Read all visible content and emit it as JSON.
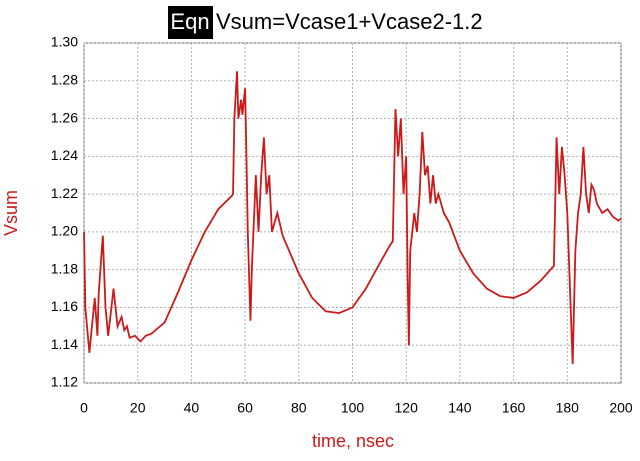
{
  "chart_data": {
    "type": "line",
    "title_tag": "Eqn",
    "title": "Vsum=Vcase1+Vcase2-1.2",
    "xlabel": "time, nsec",
    "ylabel": "Vsum",
    "xlim": [
      0,
      200
    ],
    "xticks": [
      0,
      20,
      40,
      60,
      80,
      100,
      120,
      140,
      160,
      180,
      200
    ],
    "ylim": [
      1.12,
      1.3
    ],
    "yticks": [
      1.12,
      1.14,
      1.16,
      1.18,
      {
        "value": 1.2,
        "label": "1.20"
      },
      1.22,
      1.24,
      1.26,
      1.28,
      {
        "value": 1.3,
        "label": "1.30"
      }
    ],
    "grid": true,
    "series": [
      {
        "name": "Vsum",
        "color": "#cc1a1a",
        "x": [
          0,
          0.5,
          2,
          4,
          5,
          5.5,
          7,
          8,
          9,
          11,
          12.5,
          14,
          15,
          16,
          17,
          19,
          21,
          23,
          25,
          30,
          35,
          40,
          45,
          50,
          55,
          55.5,
          56,
          57,
          57.5,
          58.5,
          59,
          60,
          60.5,
          61,
          62,
          62.5,
          64,
          65,
          66,
          67,
          68,
          69,
          70,
          72,
          74,
          80,
          85,
          90,
          95,
          100,
          105,
          110,
          114,
          115,
          116,
          117,
          118,
          119,
          120,
          120.5,
          121,
          121.5,
          123,
          124,
          125,
          126,
          127,
          128,
          129,
          130,
          131,
          132,
          134,
          136,
          140,
          145,
          150,
          155,
          160,
          165,
          170,
          175,
          176,
          177,
          178,
          179,
          180,
          181,
          182,
          183,
          184,
          185,
          186,
          187,
          188,
          189,
          190,
          191,
          193,
          195,
          197,
          199,
          200
        ],
        "values": [
          1.2,
          1.16,
          1.136,
          1.165,
          1.145,
          1.168,
          1.198,
          1.16,
          1.145,
          1.17,
          1.15,
          1.155,
          1.148,
          1.15,
          1.144,
          1.145,
          1.142,
          1.145,
          1.146,
          1.152,
          1.168,
          1.185,
          1.2,
          1.212,
          1.219,
          1.22,
          1.26,
          1.285,
          1.26,
          1.27,
          1.262,
          1.276,
          1.24,
          1.2,
          1.153,
          1.18,
          1.23,
          1.2,
          1.23,
          1.25,
          1.22,
          1.23,
          1.2,
          1.21,
          1.198,
          1.178,
          1.165,
          1.158,
          1.157,
          1.16,
          1.17,
          1.183,
          1.193,
          1.195,
          1.265,
          1.24,
          1.26,
          1.22,
          1.24,
          1.18,
          1.14,
          1.19,
          1.21,
          1.2,
          1.22,
          1.253,
          1.23,
          1.235,
          1.215,
          1.23,
          1.215,
          1.22,
          1.21,
          1.205,
          1.19,
          1.178,
          1.17,
          1.166,
          1.165,
          1.168,
          1.174,
          1.182,
          1.25,
          1.22,
          1.245,
          1.23,
          1.21,
          1.17,
          1.13,
          1.19,
          1.21,
          1.22,
          1.245,
          1.22,
          1.21,
          1.225,
          1.222,
          1.215,
          1.21,
          1.212,
          1.208,
          1.206,
          1.207
        ]
      }
    ]
  }
}
